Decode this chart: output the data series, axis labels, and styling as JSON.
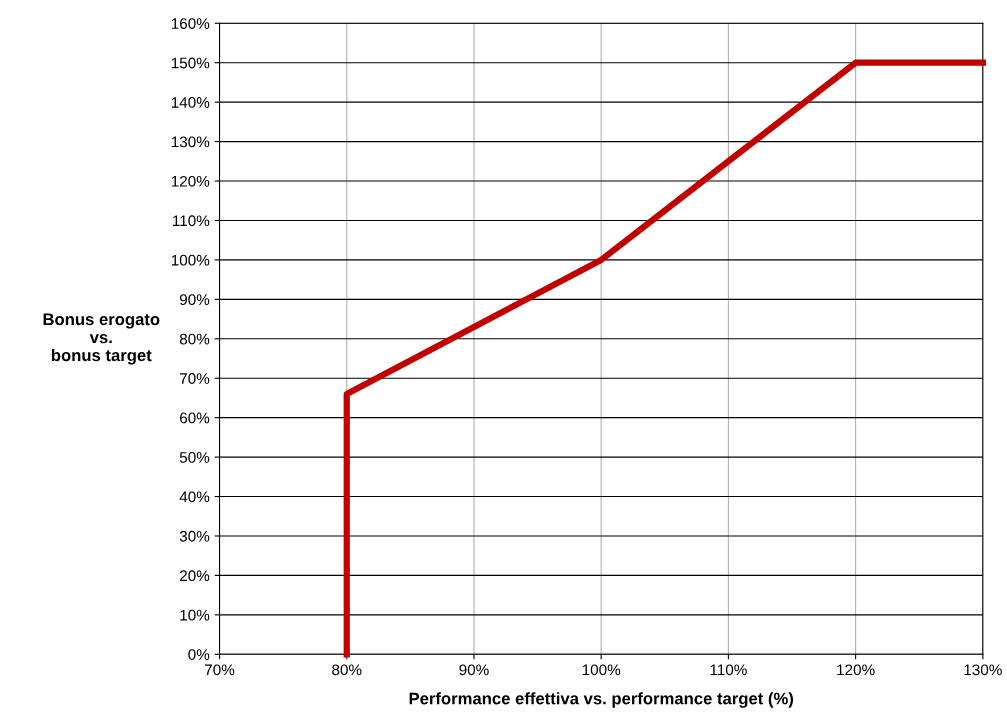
{
  "chart_data": {
    "type": "line",
    "xlabel": "Performance effettiva vs. performance target (%)",
    "ylabel": "Bonus erogato\nvs.\nbonus target",
    "x": [
      80,
      80,
      90,
      100,
      110,
      120,
      130
    ],
    "series": [
      {
        "color": "#c00000",
        "values": [
          0,
          66,
          83,
          100,
          125,
          150,
          150
        ]
      }
    ],
    "xlim": [
      70,
      130
    ],
    "xticks": [
      {
        "value": 70,
        "label": "70%"
      },
      {
        "value": 80,
        "label": "80%"
      },
      {
        "value": 90,
        "label": "90%"
      },
      {
        "value": 100,
        "label": "100%"
      },
      {
        "value": 110,
        "label": "110%"
      },
      {
        "value": 120,
        "label": "120%"
      },
      {
        "value": 130,
        "label": "130%"
      }
    ],
    "ylim": [
      0,
      160
    ],
    "yticks": [
      {
        "value": 0,
        "label": "0%"
      },
      {
        "value": 10,
        "label": "10%"
      },
      {
        "value": 20,
        "label": "20%"
      },
      {
        "value": 30,
        "label": "30%"
      },
      {
        "value": 40,
        "label": "40%"
      },
      {
        "value": 50,
        "label": "50%"
      },
      {
        "value": 60,
        "label": "60%"
      },
      {
        "value": 70,
        "label": "70%"
      },
      {
        "value": 80,
        "label": "80%"
      },
      {
        "value": 90,
        "label": "90%"
      },
      {
        "value": 100,
        "label": "100%"
      },
      {
        "value": 110,
        "label": "110%"
      },
      {
        "value": 120,
        "label": "120%"
      },
      {
        "value": 130,
        "label": "130%"
      },
      {
        "value": 140,
        "label": "140%"
      },
      {
        "value": 150,
        "label": "150%"
      },
      {
        "value": 160,
        "label": "160%"
      }
    ],
    "grid": true,
    "legend": false,
    "marker": "none",
    "line_style": "solid"
  }
}
